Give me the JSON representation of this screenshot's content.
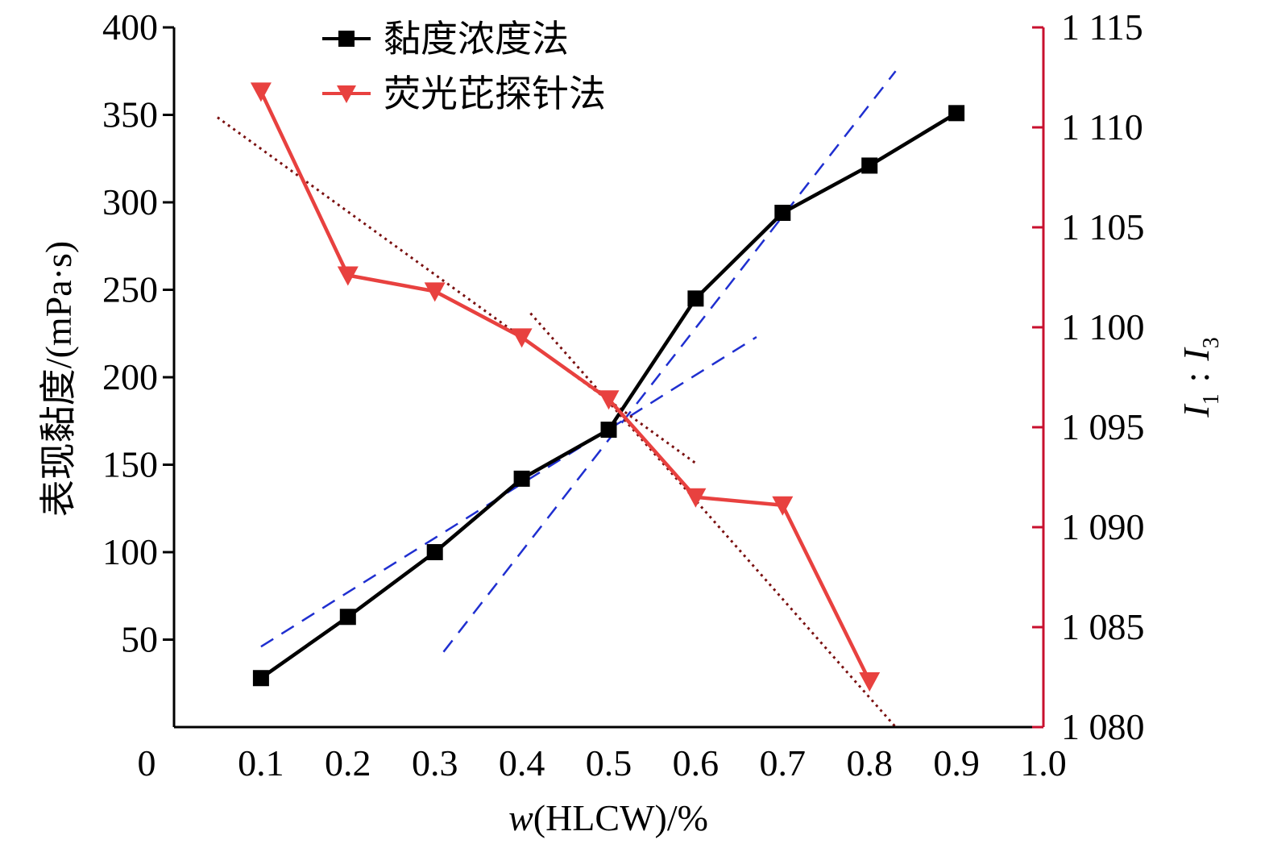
{
  "chart_data": {
    "type": "line",
    "x_axis": {
      "label_italic": "w",
      "label_rest": "(HLCW)/%",
      "range": [
        0,
        1.0
      ],
      "ticks": [
        0,
        0.1,
        0.2,
        0.3,
        0.4,
        0.5,
        0.6,
        0.7,
        0.8,
        0.9,
        1.0
      ],
      "tick_labels": [
        "0",
        "0.1",
        "0.2",
        "0.3",
        "0.4",
        "0.5",
        "0.6",
        "0.7",
        "0.8",
        "0.9",
        "1.0"
      ]
    },
    "y_left": {
      "label": "表现黏度/(mPa·s)",
      "range": [
        0,
        400
      ],
      "ticks": [
        50,
        100,
        150,
        200,
        250,
        300,
        350,
        400
      ],
      "tick_labels": [
        "50",
        "100",
        "150",
        "200",
        "250",
        "300",
        "350",
        "400"
      ]
    },
    "y_right": {
      "label_i1": "I",
      "label_sub1": "1",
      "label_colon": ":",
      "label_i3": "I",
      "label_sub3": "3",
      "range": [
        1080,
        1115
      ],
      "ticks": [
        1080,
        1085,
        1090,
        1095,
        1100,
        1105,
        1110,
        1115
      ],
      "tick_labels": [
        "1 080",
        "1 085",
        "1 090",
        "1 095",
        "1 100",
        "1 105",
        "1 110",
        "1 115"
      ],
      "color": "#c8102e"
    },
    "series": [
      {
        "name": "黏度浓度法",
        "axis": "left",
        "color": "#000000",
        "marker": "square",
        "x": [
          0.1,
          0.2,
          0.3,
          0.4,
          0.5,
          0.6,
          0.7,
          0.8,
          0.9
        ],
        "y": [
          28,
          63,
          100,
          142,
          170,
          245,
          294,
          321,
          351
        ]
      },
      {
        "name": "荧光芘探针法",
        "axis": "right",
        "color": "#e8413f",
        "marker": "triangle-down",
        "x": [
          0.1,
          0.2,
          0.3,
          0.4,
          0.5,
          0.6,
          0.7,
          0.8
        ],
        "y": [
          1111.8,
          1102.6,
          1101.8,
          1099.5,
          1096.4,
          1091.5,
          1091.1,
          1082.3
        ]
      }
    ],
    "fit_lines": [
      {
        "style": "dashed",
        "color": "#1f2fd0",
        "axis": "left",
        "x": [
          0.1,
          0.67
        ],
        "y": [
          46,
          223
        ]
      },
      {
        "style": "dashed",
        "color": "#1f2fd0",
        "axis": "left",
        "x": [
          0.31,
          0.83
        ],
        "y": [
          43,
          375
        ]
      },
      {
        "style": "dotted",
        "color": "#7a1010",
        "axis": "right",
        "x": [
          0.05,
          0.6
        ],
        "y": [
          1110.5,
          1093.2
        ]
      },
      {
        "style": "dotted",
        "color": "#7a1010",
        "axis": "right",
        "x": [
          0.41,
          0.83
        ],
        "y": [
          1100.7,
          1080
        ]
      }
    ],
    "legend": {
      "position": "top-left"
    }
  }
}
